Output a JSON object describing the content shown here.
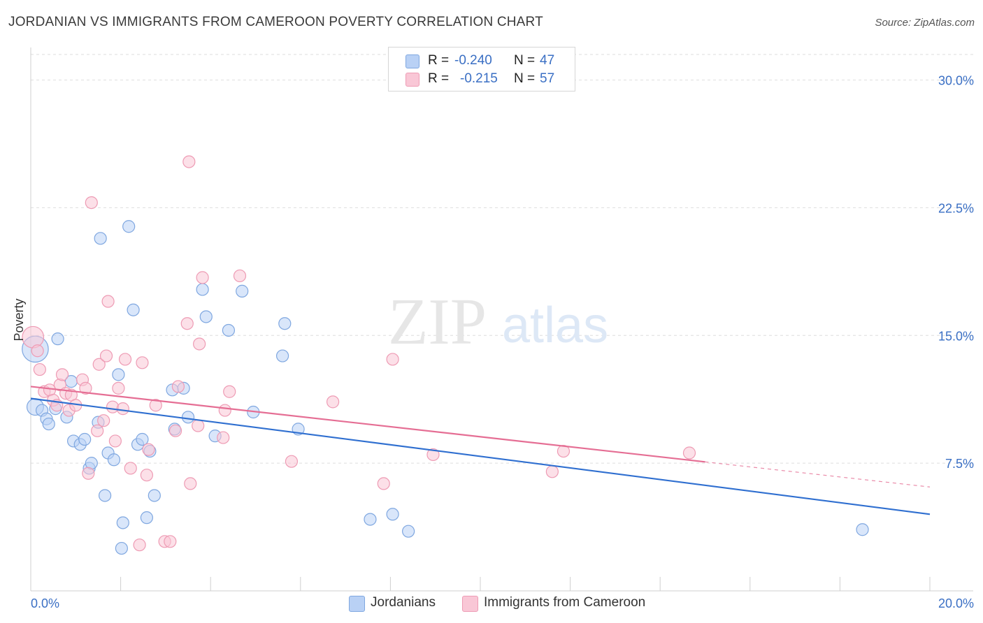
{
  "title": "JORDANIAN VS IMMIGRANTS FROM CAMEROON POVERTY CORRELATION CHART",
  "source": "Source: ZipAtlas.com",
  "legend": {
    "rows": [
      {
        "r_label": "R =",
        "r_value": "-0.240",
        "n_label": "N =",
        "n_value": "47"
      },
      {
        "r_label": "R =",
        "r_value": "-0.215",
        "n_label": "N =",
        "n_value": "57"
      }
    ]
  },
  "bottom_legend": [
    "Jordanians",
    "Immigrants from Cameroon"
  ],
  "colors": {
    "blue_fill": "#b9d1f5",
    "blue_stroke": "#7fa7e0",
    "blue_line": "#2f6fd0",
    "pink_fill": "#f9c7d6",
    "pink_stroke": "#ee9bb4",
    "pink_line": "#e56e94",
    "axis_text": "#3a6fc4",
    "grid": "#dedede"
  },
  "chart_data": {
    "type": "scatter",
    "title": "JORDANIAN VS IMMIGRANTS FROM CAMEROON POVERTY CORRELATION CHART",
    "xlabel": "",
    "ylabel": "Poverty",
    "xlim": [
      0,
      20
    ],
    "ylim": [
      0,
      31.5
    ],
    "x_tick_labels": [
      {
        "value": 0,
        "label": "0.0%"
      },
      {
        "value": 20,
        "label": "20.0%"
      }
    ],
    "y_tick_labels": [
      {
        "value": 7.5,
        "label": "7.5%"
      },
      {
        "value": 15,
        "label": "15.0%"
      },
      {
        "value": 22.5,
        "label": "22.5%"
      },
      {
        "value": 30,
        "label": "30.0%"
      }
    ],
    "x_minor_ticks": [
      2,
      4,
      6,
      8,
      10,
      12,
      14,
      16,
      18,
      20
    ],
    "grid": true,
    "watermark": {
      "zip": "ZIP",
      "atlas": "atlas"
    },
    "series": [
      {
        "name": "Jordanians",
        "color": "#7fa7e0",
        "trend": {
          "x0": 0,
          "y0": 11.3,
          "x1": 20,
          "y1": 4.5,
          "dashed_from": null
        },
        "points": [
          [
            0.1,
            14.2,
            2.2
          ],
          [
            0.1,
            10.8,
            1.4
          ],
          [
            0.25,
            10.6,
            1
          ],
          [
            0.35,
            10.1,
            1
          ],
          [
            0.4,
            9.8,
            1
          ],
          [
            0.6,
            14.8,
            1
          ],
          [
            0.55,
            10.7,
            1
          ],
          [
            0.8,
            10.2,
            1
          ],
          [
            0.9,
            12.3,
            1
          ],
          [
            0.95,
            8.8,
            1
          ],
          [
            1.1,
            8.6,
            1
          ],
          [
            1.2,
            8.9,
            1
          ],
          [
            1.3,
            7.2,
            1
          ],
          [
            1.35,
            7.5,
            1
          ],
          [
            1.5,
            9.9,
            1
          ],
          [
            1.55,
            20.7,
            1
          ],
          [
            1.65,
            5.6,
            1
          ],
          [
            1.72,
            8.1,
            1
          ],
          [
            1.85,
            7.7,
            1
          ],
          [
            1.95,
            12.7,
            1
          ],
          [
            2.05,
            4.0,
            1
          ],
          [
            2.02,
            2.5,
            1
          ],
          [
            2.18,
            21.4,
            1
          ],
          [
            2.28,
            16.5,
            1
          ],
          [
            2.38,
            8.6,
            1
          ],
          [
            2.48,
            8.9,
            1
          ],
          [
            2.58,
            4.3,
            1
          ],
          [
            2.65,
            8.2,
            1
          ],
          [
            2.75,
            5.6,
            1
          ],
          [
            3.15,
            11.8,
            1
          ],
          [
            3.2,
            9.5,
            1
          ],
          [
            3.4,
            11.9,
            1
          ],
          [
            3.5,
            10.2,
            1
          ],
          [
            3.82,
            17.7,
            1
          ],
          [
            3.9,
            16.1,
            1
          ],
          [
            4.1,
            9.1,
            1
          ],
          [
            4.4,
            15.3,
            1
          ],
          [
            4.7,
            17.6,
            1
          ],
          [
            4.95,
            10.5,
            1
          ],
          [
            5.6,
            13.8,
            1
          ],
          [
            5.65,
            15.7,
            1
          ],
          [
            5.95,
            9.5,
            1
          ],
          [
            7.55,
            4.2,
            1
          ],
          [
            8.05,
            4.5,
            1
          ],
          [
            8.4,
            3.5,
            1
          ],
          [
            18.5,
            3.6,
            1
          ]
        ]
      },
      {
        "name": "Immigrants from Cameroon",
        "color": "#ee9bb4",
        "trend": {
          "x0": 0,
          "y0": 12.0,
          "x1": 20,
          "y1": 6.1,
          "dashed_from": 15.0
        },
        "points": [
          [
            0.05,
            14.9,
            1.8
          ],
          [
            0.15,
            14.1,
            1
          ],
          [
            0.2,
            13.0,
            1
          ],
          [
            0.3,
            11.7,
            1
          ],
          [
            0.42,
            11.8,
            1
          ],
          [
            0.5,
            11.2,
            1
          ],
          [
            0.58,
            10.9,
            1
          ],
          [
            0.65,
            12.1,
            1
          ],
          [
            0.7,
            12.7,
            1
          ],
          [
            0.78,
            11.6,
            1
          ],
          [
            0.85,
            10.6,
            1
          ],
          [
            0.9,
            11.5,
            1
          ],
          [
            1.0,
            10.9,
            1
          ],
          [
            1.15,
            12.4,
            1
          ],
          [
            1.22,
            11.9,
            1
          ],
          [
            1.28,
            6.9,
            1
          ],
          [
            1.35,
            22.8,
            1
          ],
          [
            1.48,
            9.4,
            1
          ],
          [
            1.52,
            13.3,
            1
          ],
          [
            1.62,
            10.0,
            1
          ],
          [
            1.68,
            13.8,
            1
          ],
          [
            1.72,
            17.0,
            1
          ],
          [
            1.82,
            10.8,
            1
          ],
          [
            1.88,
            8.8,
            1
          ],
          [
            1.95,
            11.9,
            1
          ],
          [
            2.05,
            10.7,
            1
          ],
          [
            2.1,
            13.6,
            1
          ],
          [
            2.22,
            7.2,
            1
          ],
          [
            2.42,
            2.7,
            1
          ],
          [
            2.48,
            13.4,
            1
          ],
          [
            2.58,
            6.8,
            1
          ],
          [
            2.62,
            8.3,
            1
          ],
          [
            2.78,
            10.9,
            1
          ],
          [
            2.98,
            2.9,
            1
          ],
          [
            3.1,
            2.9,
            1
          ],
          [
            3.22,
            9.4,
            1
          ],
          [
            3.28,
            12.0,
            1
          ],
          [
            3.48,
            15.7,
            1
          ],
          [
            3.55,
            6.3,
            1
          ],
          [
            3.52,
            25.2,
            1
          ],
          [
            3.72,
            9.7,
            1
          ],
          [
            3.75,
            14.5,
            1
          ],
          [
            3.82,
            18.4,
            1
          ],
          [
            4.28,
            9.0,
            1
          ],
          [
            4.32,
            10.6,
            1
          ],
          [
            4.42,
            11.7,
            1
          ],
          [
            4.65,
            18.5,
            1
          ],
          [
            5.8,
            7.6,
            1
          ],
          [
            6.72,
            11.1,
            1
          ],
          [
            7.85,
            6.3,
            1
          ],
          [
            8.05,
            13.6,
            1
          ],
          [
            8.95,
            8.0,
            1
          ],
          [
            11.6,
            7.0,
            1
          ],
          [
            11.85,
            8.2,
            1
          ],
          [
            14.65,
            8.1,
            1
          ]
        ]
      }
    ]
  }
}
